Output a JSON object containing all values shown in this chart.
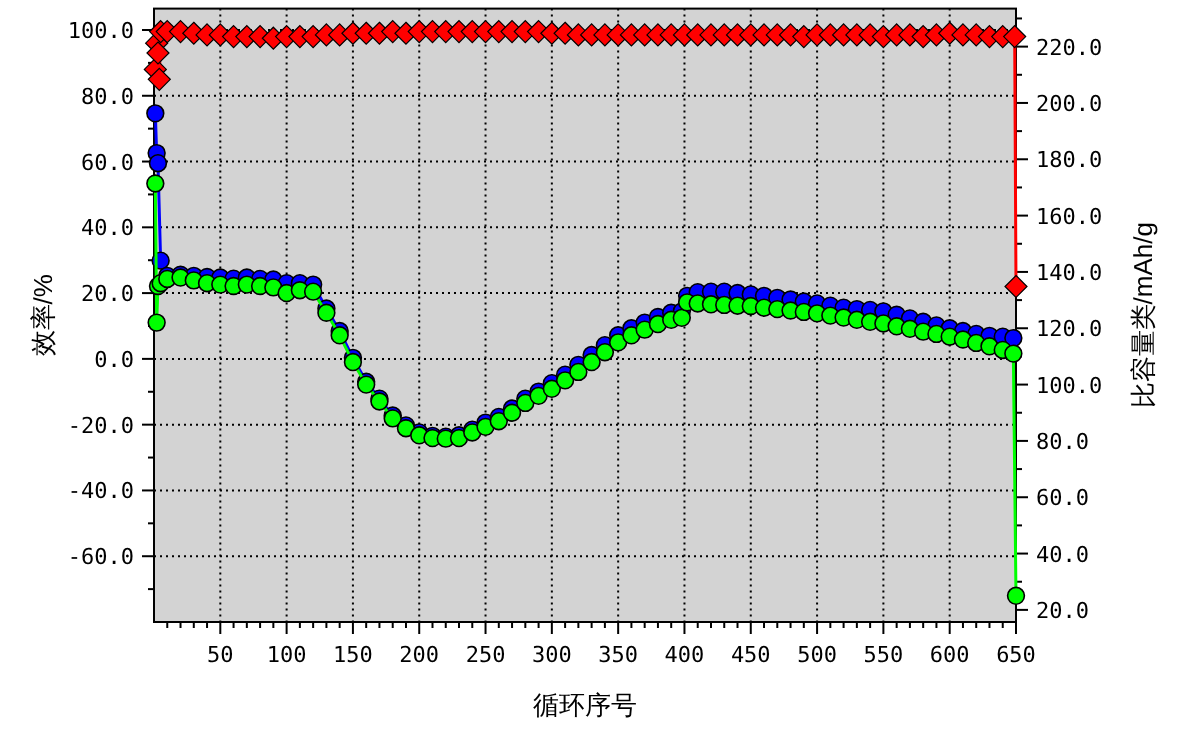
{
  "chart_data": {
    "type": "line",
    "xlabel": "循环序号",
    "ylabel": "效率/%",
    "y2label": "比容量类/mAh/g",
    "grid": true,
    "xlim": [
      0,
      650
    ],
    "ylim": [
      -80,
      106.5
    ],
    "y2lim": [
      15.7,
      233.5
    ],
    "xticks": [
      {
        "value": 10,
        "label": null
      },
      {
        "value": 20,
        "label": null
      },
      {
        "value": 30,
        "label": null
      },
      {
        "value": 40,
        "label": null
      },
      50,
      {
        "value": 60,
        "label": null
      },
      {
        "value": 70,
        "label": null
      },
      {
        "value": 80,
        "label": null
      },
      {
        "value": 90,
        "label": null
      },
      100,
      {
        "value": 110,
        "label": null
      },
      {
        "value": 120,
        "label": null
      },
      {
        "value": 130,
        "label": null
      },
      {
        "value": 140,
        "label": null
      },
      150,
      {
        "value": 160,
        "label": null
      },
      {
        "value": 170,
        "label": null
      },
      {
        "value": 180,
        "label": null
      },
      {
        "value": 190,
        "label": null
      },
      200,
      {
        "value": 210,
        "label": null
      },
      {
        "value": 220,
        "label": null
      },
      {
        "value": 230,
        "label": null
      },
      {
        "value": 240,
        "label": null
      },
      250,
      {
        "value": 260,
        "label": null
      },
      {
        "value": 270,
        "label": null
      },
      {
        "value": 280,
        "label": null
      },
      {
        "value": 290,
        "label": null
      },
      300,
      {
        "value": 310,
        "label": null
      },
      {
        "value": 320,
        "label": null
      },
      {
        "value": 330,
        "label": null
      },
      {
        "value": 340,
        "label": null
      },
      350,
      {
        "value": 360,
        "label": null
      },
      {
        "value": 370,
        "label": null
      },
      {
        "value": 380,
        "label": null
      },
      {
        "value": 390,
        "label": null
      },
      400,
      {
        "value": 410,
        "label": null
      },
      {
        "value": 420,
        "label": null
      },
      {
        "value": 430,
        "label": null
      },
      {
        "value": 440,
        "label": null
      },
      450,
      {
        "value": 460,
        "label": null
      },
      {
        "value": 470,
        "label": null
      },
      {
        "value": 480,
        "label": null
      },
      {
        "value": 490,
        "label": null
      },
      500,
      {
        "value": 510,
        "label": null
      },
      {
        "value": 520,
        "label": null
      },
      {
        "value": 530,
        "label": null
      },
      {
        "value": 540,
        "label": null
      },
      550,
      {
        "value": 560,
        "label": null
      },
      {
        "value": 570,
        "label": null
      },
      {
        "value": 580,
        "label": null
      },
      {
        "value": 590,
        "label": null
      },
      600,
      {
        "value": 610,
        "label": null
      },
      {
        "value": 620,
        "label": null
      },
      {
        "value": 630,
        "label": null
      },
      {
        "value": 640,
        "label": null
      },
      650
    ],
    "yticks": [
      {
        "value": -70,
        "label": null
      },
      {
        "value": -60,
        "label": "-60.0"
      },
      {
        "value": -50,
        "label": null
      },
      {
        "value": -40,
        "label": "-40.0"
      },
      {
        "value": -30,
        "label": null
      },
      {
        "value": -20,
        "label": "-20.0"
      },
      {
        "value": -10,
        "label": null
      },
      {
        "value": 0,
        "label": "0.0"
      },
      {
        "value": 10,
        "label": null
      },
      {
        "value": 20,
        "label": "20.0"
      },
      {
        "value": 30,
        "label": null
      },
      {
        "value": 40,
        "label": "40.0"
      },
      {
        "value": 50,
        "label": null
      },
      {
        "value": 60,
        "label": "60.0"
      },
      {
        "value": 70,
        "label": null
      },
      {
        "value": 80,
        "label": "80.0"
      },
      {
        "value": 90,
        "label": null
      },
      {
        "value": 100,
        "label": "100.0"
      }
    ],
    "y2ticks": [
      {
        "value": 20,
        "label": "20.0"
      },
      {
        "value": 30,
        "label": null
      },
      {
        "value": 40,
        "label": "40.0"
      },
      {
        "value": 50,
        "label": null
      },
      {
        "value": 60,
        "label": "60.0"
      },
      {
        "value": 70,
        "label": null
      },
      {
        "value": 80,
        "label": "80.0"
      },
      {
        "value": 90,
        "label": null
      },
      {
        "value": 100,
        "label": "100.0"
      },
      {
        "value": 110,
        "label": null
      },
      {
        "value": 120,
        "label": "120.0"
      },
      {
        "value": 130,
        "label": null
      },
      {
        "value": 140,
        "label": "140.0"
      },
      {
        "value": 150,
        "label": null
      },
      {
        "value": 160,
        "label": "160.0"
      },
      {
        "value": 170,
        "label": null
      },
      {
        "value": 180,
        "label": "180.0"
      },
      {
        "value": 190,
        "label": null
      },
      {
        "value": 200,
        "label": "200.0"
      },
      {
        "value": 210,
        "label": null
      },
      {
        "value": 220,
        "label": "220.0"
      },
      {
        "value": 230,
        "label": null
      }
    ],
    "series": [
      {
        "color": "#0000ff",
        "axis": "y2",
        "marker": "circle",
        "x": [
          1,
          2,
          3,
          5,
          10,
          20,
          30,
          40,
          50,
          60,
          70,
          80,
          90,
          100,
          110,
          120,
          130,
          140,
          150,
          160,
          170,
          180,
          190,
          200,
          210,
          220,
          230,
          240,
          250,
          260,
          270,
          280,
          290,
          300,
          310,
          320,
          330,
          340,
          350,
          360,
          370,
          380,
          390,
          398,
          402,
          410,
          420,
          430,
          440,
          450,
          460,
          470,
          480,
          490,
          500,
          510,
          520,
          530,
          540,
          550,
          560,
          570,
          580,
          590,
          600,
          610,
          620,
          630,
          640,
          648
        ],
        "values": [
          196.3,
          182.2,
          178.6,
          144,
          138.6,
          139,
          138.6,
          138.2,
          138,
          137.6,
          138,
          137.5,
          137.3,
          136,
          136,
          135.5,
          127,
          119,
          109.5,
          101,
          95,
          89,
          85.5,
          83,
          81.8,
          81.5,
          82,
          84,
          86.5,
          88.5,
          91.5,
          95,
          97.5,
          100.5,
          103.5,
          107,
          110.5,
          114,
          117.5,
          120,
          122,
          124,
          125.5,
          126,
          131.5,
          132.8,
          133,
          133,
          132.5,
          132,
          131.5,
          130.8,
          130.2,
          129.5,
          128.8,
          128,
          127.3,
          126.8,
          126.5,
          126,
          124.8,
          123.5,
          122.3,
          121,
          120,
          119,
          118,
          117.3,
          117,
          116.5
        ]
      },
      {
        "color": "#00ff00",
        "axis": "y2",
        "marker": "circle",
        "x": [
          1,
          2,
          3,
          5,
          10,
          20,
          30,
          40,
          50,
          60,
          70,
          80,
          90,
          100,
          110,
          120,
          130,
          140,
          150,
          160,
          170,
          180,
          190,
          200,
          210,
          220,
          230,
          240,
          250,
          260,
          270,
          280,
          290,
          300,
          310,
          320,
          330,
          340,
          350,
          360,
          370,
          380,
          390,
          398,
          402,
          410,
          420,
          430,
          440,
          450,
          460,
          470,
          480,
          490,
          500,
          510,
          520,
          530,
          540,
          550,
          560,
          570,
          580,
          590,
          600,
          610,
          620,
          630,
          640,
          648,
          650
        ],
        "values": [
          171.4,
          122,
          135,
          136,
          137.5,
          138,
          137,
          136,
          135.5,
          135,
          135.5,
          135,
          134.5,
          132.5,
          133.5,
          133,
          125.5,
          117.5,
          108,
          100,
          94,
          88,
          84.5,
          82,
          81,
          80.8,
          81,
          83,
          85,
          87,
          90,
          93.5,
          96,
          98.5,
          101.5,
          104.5,
          108,
          111.5,
          115,
          117.5,
          119.5,
          121.5,
          123,
          123.7,
          129.2,
          128.8,
          128.5,
          128.3,
          128,
          127.9,
          127.3,
          126.8,
          126.3,
          125.8,
          125.3,
          124.5,
          123.8,
          123,
          122.3,
          121.7,
          120.7,
          119.8,
          118.8,
          118,
          117,
          116,
          114.8,
          113.6,
          112.3,
          111,
          25
        ]
      },
      {
        "color": "#ff0000",
        "marker": "diamond",
        "x": [
          1,
          2,
          3,
          4,
          5,
          10,
          20,
          30,
          40,
          50,
          60,
          70,
          80,
          90,
          100,
          110,
          120,
          130,
          140,
          150,
          160,
          170,
          180,
          190,
          200,
          210,
          220,
          230,
          240,
          250,
          260,
          270,
          280,
          290,
          300,
          310,
          320,
          330,
          340,
          350,
          360,
          370,
          380,
          390,
          400,
          410,
          420,
          430,
          440,
          450,
          460,
          470,
          480,
          490,
          500,
          510,
          520,
          530,
          540,
          550,
          560,
          570,
          580,
          590,
          600,
          610,
          620,
          630,
          640,
          649,
          650
        ],
        "values": [
          88,
          96,
          93,
          85,
          99.5,
          99.5,
          99.5,
          99,
          98.5,
          98.5,
          98,
          98,
          98,
          97.5,
          98,
          98,
          98,
          98.5,
          98.5,
          99,
          99,
          99,
          99.5,
          99,
          99.5,
          99.5,
          99.5,
          99.5,
          99.5,
          99.5,
          99.5,
          99.5,
          99.5,
          99.5,
          99,
          99,
          98.5,
          98.5,
          98.5,
          98.5,
          98.5,
          98.5,
          98.5,
          98.5,
          98.5,
          98.5,
          98.5,
          98.5,
          98.5,
          98.5,
          98.5,
          98.5,
          98.5,
          98,
          98.5,
          98.5,
          98.5,
          98.5,
          98.5,
          98,
          98.5,
          98.5,
          98,
          98.5,
          99,
          98.5,
          98.5,
          98,
          98,
          98,
          22
        ]
      }
    ]
  }
}
